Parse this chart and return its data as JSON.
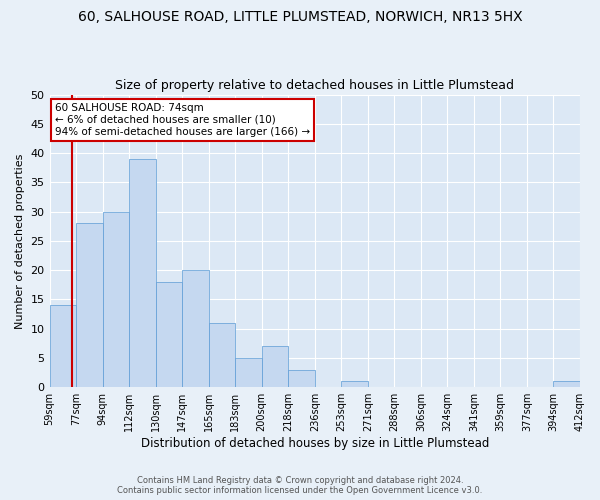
{
  "title1": "60, SALHOUSE ROAD, LITTLE PLUMSTEAD, NORWICH, NR13 5HX",
  "title2": "Size of property relative to detached houses in Little Plumstead",
  "xlabel": "Distribution of detached houses by size in Little Plumstead",
  "ylabel": "Number of detached properties",
  "bar_values": [
    14,
    28,
    30,
    39,
    18,
    20,
    11,
    5,
    7,
    3,
    0,
    1,
    0,
    0,
    0,
    0,
    0,
    0,
    0,
    1
  ],
  "categories": [
    "59sqm",
    "77sqm",
    "94sqm",
    "112sqm",
    "130sqm",
    "147sqm",
    "165sqm",
    "183sqm",
    "200sqm",
    "218sqm",
    "236sqm",
    "253sqm",
    "271sqm",
    "288sqm",
    "306sqm",
    "324sqm",
    "341sqm",
    "359sqm",
    "377sqm",
    "394sqm",
    "412sqm"
  ],
  "bar_color": "#c5d8f0",
  "bar_edge_color": "#5b9bd5",
  "vline_color": "#cc0000",
  "annotation_title": "60 SALHOUSE ROAD: 74sqm",
  "annotation_line1": "← 6% of detached houses are smaller (10)",
  "annotation_line2": "94% of semi-detached houses are larger (166) →",
  "annotation_box_color": "#ffffff",
  "annotation_box_edge": "#cc0000",
  "ylim": [
    0,
    50
  ],
  "yticks": [
    0,
    5,
    10,
    15,
    20,
    25,
    30,
    35,
    40,
    45,
    50
  ],
  "footer1": "Contains HM Land Registry data © Crown copyright and database right 2024.",
  "footer2": "Contains public sector information licensed under the Open Government Licence v3.0.",
  "bg_color": "#e8f0f8",
  "plot_bg_color": "#dce8f5",
  "grid_color": "#ffffff",
  "title_fontsize": 10,
  "subtitle_fontsize": 9
}
